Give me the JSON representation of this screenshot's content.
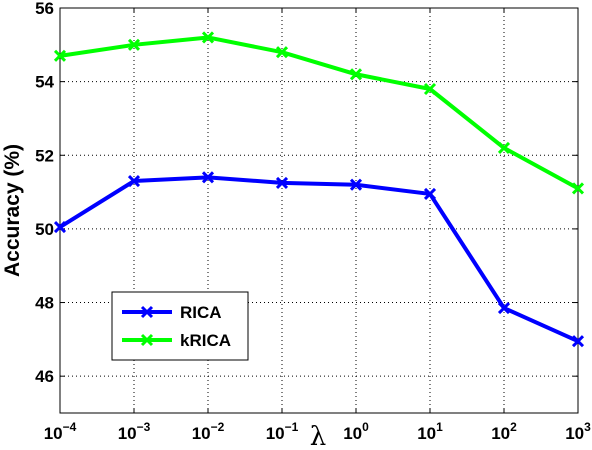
{
  "chart_data": {
    "type": "line",
    "xlabel": "λ",
    "ylabel": "Accuracy (%)",
    "x_scale": "log",
    "x_tick_labels": [
      {
        "base": "10",
        "exp": "−4"
      },
      {
        "base": "10",
        "exp": "−3"
      },
      {
        "base": "10",
        "exp": "−2"
      },
      {
        "base": "10",
        "exp": "−1"
      },
      {
        "base": "10",
        "exp": "0"
      },
      {
        "base": "10",
        "exp": "1"
      },
      {
        "base": "10",
        "exp": "2"
      },
      {
        "base": "10",
        "exp": "3"
      }
    ],
    "x": [
      0.0001,
      0.001,
      0.01,
      0.1,
      1,
      10,
      100,
      1000
    ],
    "ylim": [
      45,
      56
    ],
    "y_ticks": [
      46,
      48,
      50,
      52,
      54,
      56
    ],
    "grid": true,
    "legend_position": "lower-left",
    "series": [
      {
        "name": "RICA",
        "color": "#0000ff",
        "marker": "x",
        "values": [
          50.05,
          51.3,
          51.4,
          51.25,
          51.2,
          50.95,
          47.85,
          46.95
        ]
      },
      {
        "name": "kRICA",
        "color": "#00ff00",
        "marker": "x",
        "values": [
          54.7,
          55.0,
          55.2,
          54.8,
          54.2,
          53.8,
          52.2,
          51.1
        ]
      }
    ]
  }
}
